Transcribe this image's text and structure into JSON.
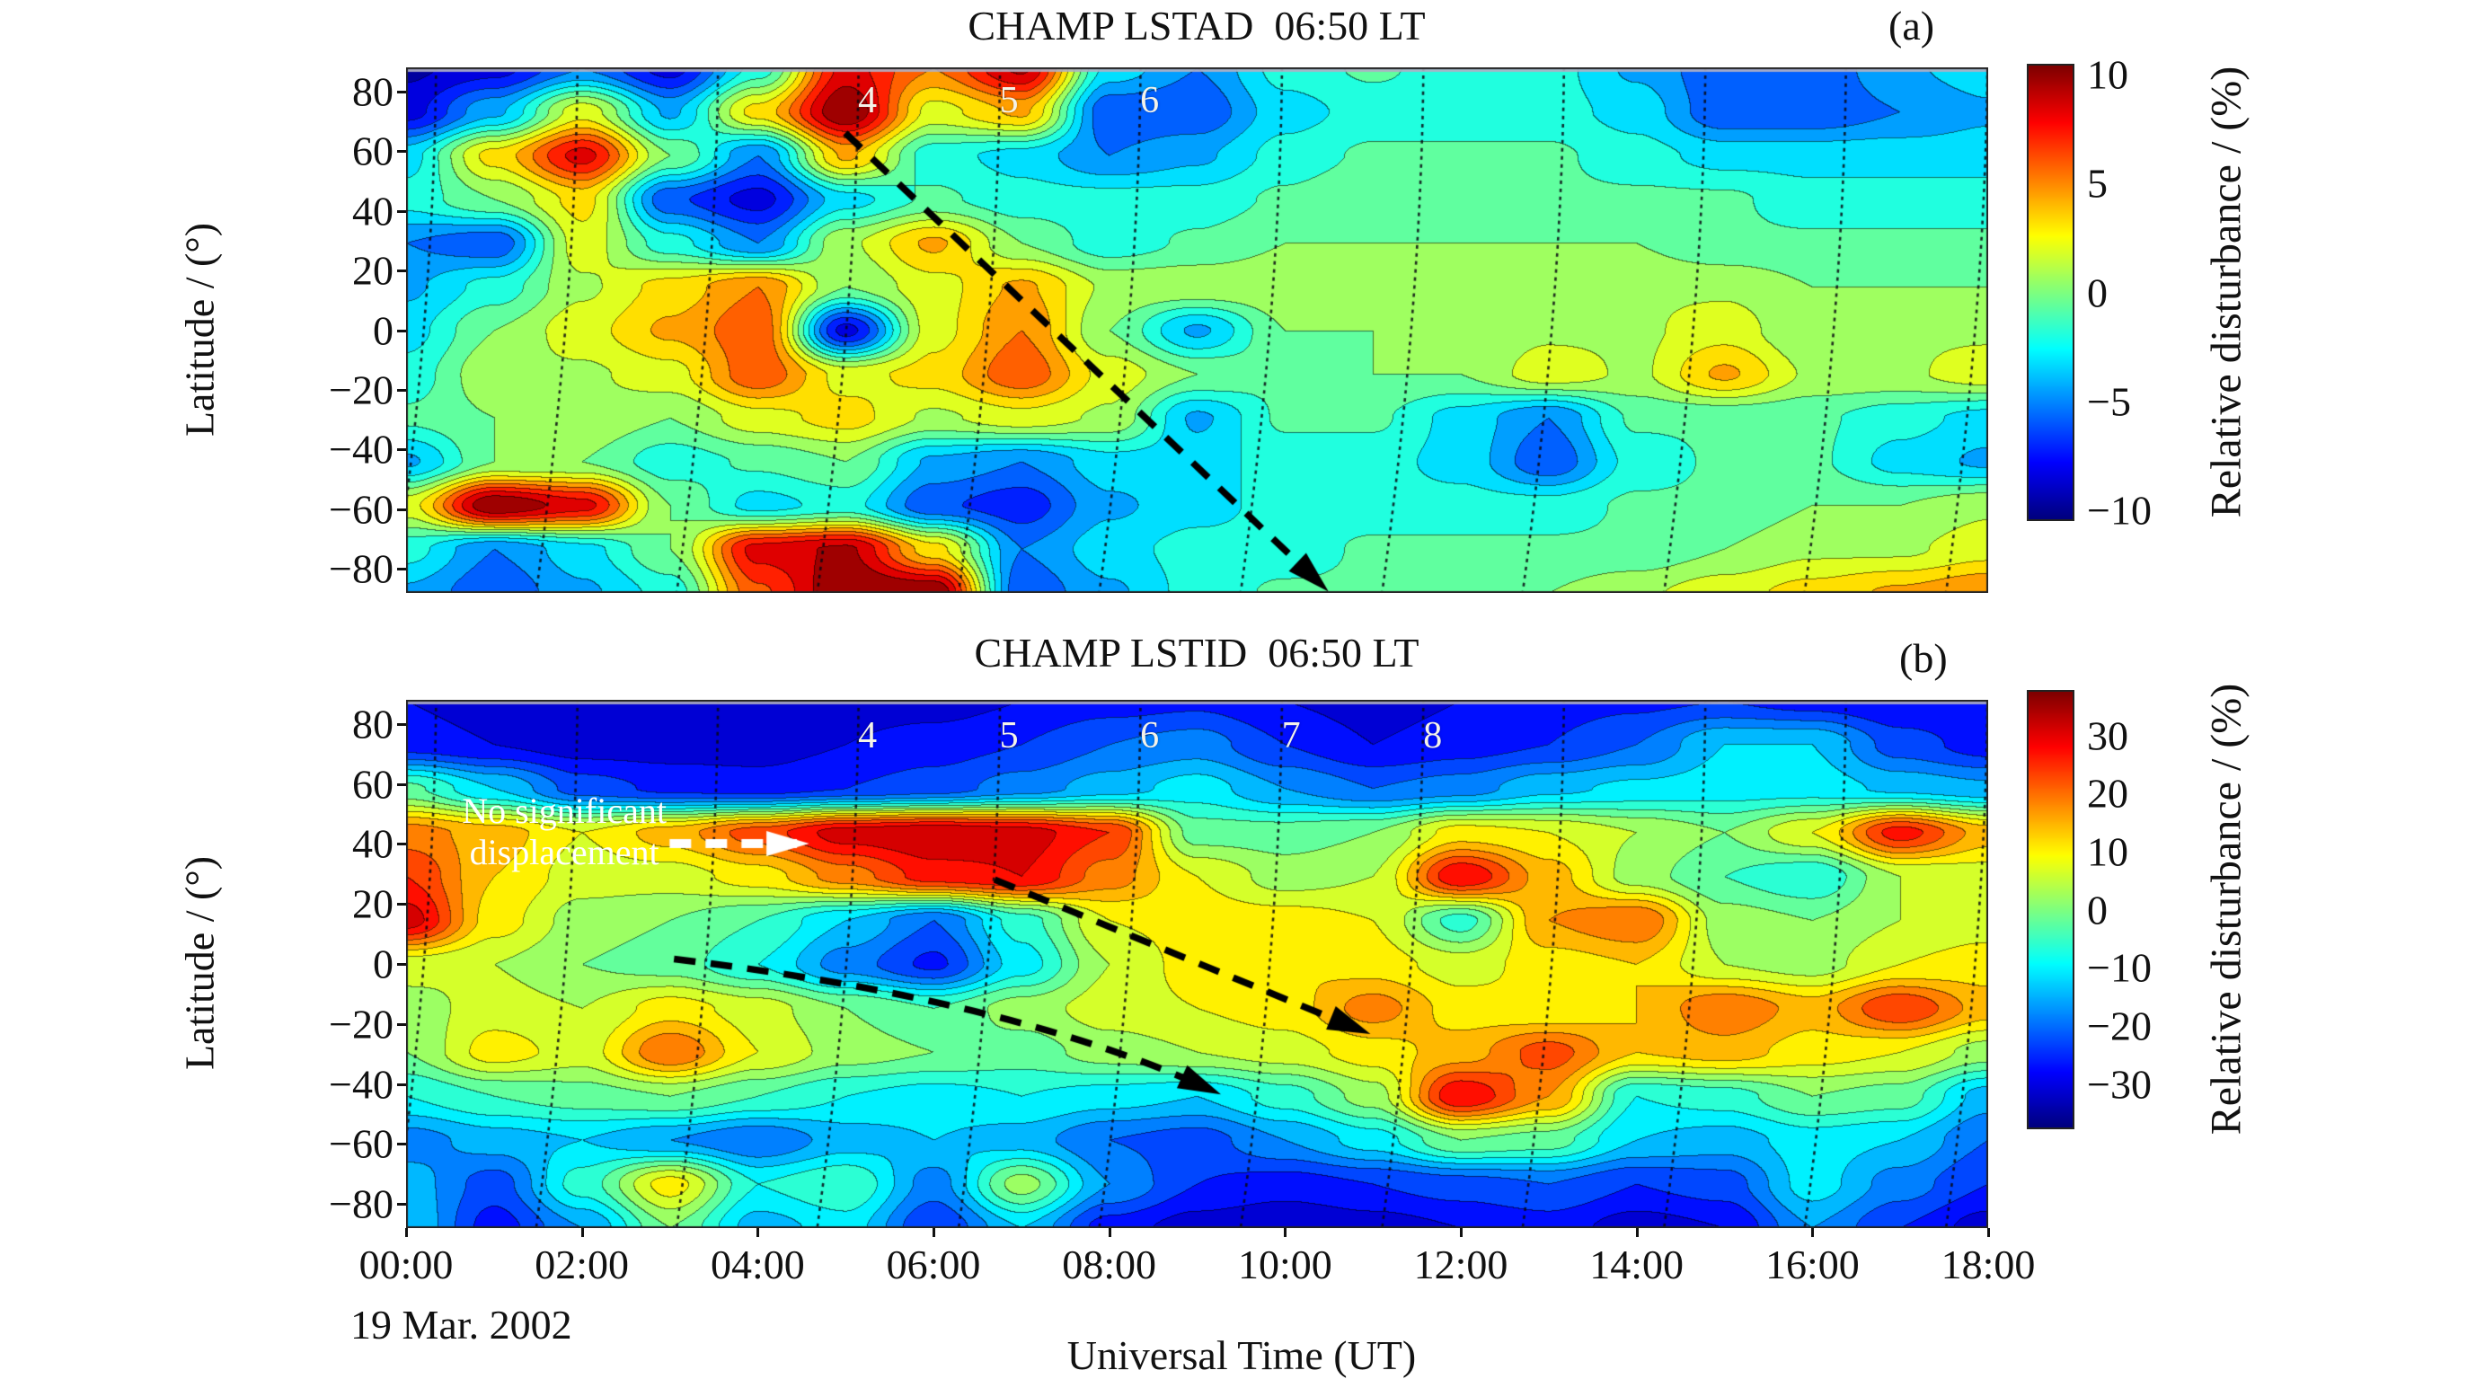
{
  "figure": {
    "xlabel": "Universal Time (UT)",
    "date_label": "19 Mar. 2002",
    "x_ticks": [
      "00:00",
      "02:00",
      "04:00",
      "06:00",
      "08:00",
      "10:00",
      "12:00",
      "14:00",
      "16:00",
      "18:00"
    ],
    "y_label": "Latitude / (°)",
    "colorbar_label": "Relative disturbance / (%)",
    "y_ticks": [
      {
        "label": "80",
        "v": 80
      },
      {
        "label": "60",
        "v": 60
      },
      {
        "label": "40",
        "v": 40
      },
      {
        "label": "20",
        "v": 20
      },
      {
        "label": "0",
        "v": 0
      },
      {
        "label": "−20",
        "v": -20
      },
      {
        "label": "−40",
        "v": -40
      },
      {
        "label": "−60",
        "v": -60
      },
      {
        "label": "−80",
        "v": -80
      }
    ],
    "panel_a": {
      "title": "CHAMP LSTAD  06:50 LT",
      "corner_label": "(a)"
    },
    "panel_b": {
      "title": "CHAMP LSTID  06:50 LT",
      "corner_label": "(b)"
    }
  },
  "chart_data": [
    {
      "type": "heatmap",
      "panel": "a",
      "title": "CHAMP LSTAD  06:50 LT",
      "xlabel": "Universal Time (UT)",
      "ylabel": "Latitude / (°)",
      "colormap": "jet",
      "x_hours": [
        0,
        1,
        2,
        3,
        4,
        5,
        6,
        7,
        8,
        9,
        10,
        11,
        12,
        13,
        14,
        15,
        16,
        17,
        18
      ],
      "lat_rows": [
        88,
        73.3,
        58.7,
        44,
        29.3,
        14.7,
        0,
        -14.7,
        -29.3,
        -44,
        -58.7,
        -73.3,
        -88
      ],
      "values": [
        [
          -9,
          -8,
          -5,
          -8,
          -2,
          8,
          5,
          9,
          -3,
          -5,
          -2,
          -1,
          -2,
          -2,
          -4,
          -6,
          -6,
          -4,
          -3
        ],
        [
          -8,
          -4,
          2,
          -4,
          3,
          10,
          2,
          4,
          -6,
          -6,
          -3,
          -2,
          -2,
          -2,
          -3,
          -6,
          -6,
          -5,
          -4
        ],
        [
          -3,
          3,
          8,
          0,
          -5,
          4,
          -2,
          -3,
          -5,
          -4,
          -2,
          -1,
          -1,
          -1,
          -2,
          -3,
          -3,
          -3,
          -3
        ],
        [
          -2,
          0,
          3,
          -6,
          -8,
          -3,
          -1,
          -2,
          -2,
          -2,
          -1,
          0,
          -1,
          -1,
          -1,
          -1,
          -2,
          -2,
          -2
        ],
        [
          -5,
          -6,
          2,
          -2,
          -5,
          1,
          4,
          0,
          -2,
          -1,
          0,
          0,
          0,
          0,
          0,
          -1,
          -1,
          -1,
          -1
        ],
        [
          -4,
          -2,
          1,
          3,
          5,
          0,
          2,
          4,
          1,
          1,
          1,
          1,
          0,
          1,
          1,
          1,
          0,
          0,
          0
        ],
        [
          -3,
          0,
          2,
          4,
          6,
          -8,
          2,
          5,
          0,
          -4,
          0,
          0,
          0,
          1,
          1,
          2,
          0,
          1,
          1
        ],
        [
          -2,
          1,
          1,
          2,
          6,
          2,
          3,
          6,
          2,
          0,
          -1,
          0,
          0,
          2,
          1,
          4,
          1,
          1,
          2
        ],
        [
          -1,
          0,
          1,
          0,
          2,
          3,
          1,
          2,
          1,
          -4,
          -1,
          -1,
          -3,
          -5,
          -1,
          -1,
          -1,
          -2,
          -3
        ],
        [
          -4,
          0,
          0,
          -2,
          -1,
          0,
          -4,
          -5,
          -3,
          -3,
          -2,
          -2,
          -3,
          -6,
          -2,
          -1,
          -1,
          -3,
          -4
        ],
        [
          2,
          10,
          8,
          0,
          -3,
          -2,
          -6,
          -7,
          -4,
          -3,
          -2,
          -2,
          -2,
          -2,
          -1,
          -1,
          0,
          0,
          1
        ],
        [
          -2,
          -5,
          -3,
          0,
          8,
          9,
          3,
          -5,
          -3,
          -2,
          -2,
          -1,
          -1,
          -1,
          -1,
          0,
          1,
          1,
          2
        ],
        [
          -4,
          -6,
          -4,
          -2,
          6,
          10,
          10,
          -6,
          -4,
          -2,
          -1,
          -1,
          -1,
          0,
          1,
          2,
          3,
          4,
          5
        ]
      ],
      "vmin": -10,
      "vmax": 10,
      "level_step": 1.25,
      "colorbar_ticks": [
        {
          "label": "10",
          "v": 10
        },
        {
          "label": "5",
          "v": 5
        },
        {
          "label": "0",
          "v": 0
        },
        {
          "label": "−5",
          "v": -5
        },
        {
          "label": "−10",
          "v": -10
        }
      ],
      "colorbar_label": "Relative disturbance / (%)",
      "track_times": [
        0.3,
        1.91,
        3.51,
        5.11,
        6.72,
        8.32,
        9.93,
        11.54,
        13.14,
        14.75,
        16.35,
        17.96
      ],
      "orbit_labels": [
        {
          "text": "4",
          "t": 5.25,
          "lat": 77
        },
        {
          "text": "5",
          "t": 6.86,
          "lat": 77
        },
        {
          "text": "6",
          "t": 8.46,
          "lat": 77
        }
      ],
      "arrows": [
        {
          "color": "black",
          "points": [
            [
              5.0,
              66
            ],
            [
              10.4,
              -85
            ]
          ]
        }
      ]
    },
    {
      "type": "heatmap",
      "panel": "b",
      "title": "CHAMP LSTID  06:50 LT",
      "xlabel": "Universal Time (UT)",
      "ylabel": "Latitude / (°)",
      "colormap": "jet",
      "x_hours": [
        0,
        1,
        2,
        3,
        4,
        5,
        6,
        7,
        8,
        9,
        10,
        11,
        12,
        13,
        14,
        15,
        16,
        17,
        18
      ],
      "lat_rows": [
        88,
        73.3,
        58.7,
        44,
        29.3,
        14.7,
        0,
        -14.7,
        -29.3,
        -44,
        -58.7,
        -73.3,
        -88
      ],
      "values": [
        [
          -28,
          -30,
          -30,
          -32,
          -32,
          -30,
          -30,
          -28,
          -26,
          -25,
          -28,
          -30,
          -28,
          -26,
          -25,
          -24,
          -26,
          -28,
          -28
        ],
        [
          -26,
          -28,
          -30,
          -30,
          -30,
          -28,
          -26,
          -24,
          -20,
          -18,
          -24,
          -28,
          -26,
          -24,
          -20,
          -12,
          -12,
          -22,
          -26
        ],
        [
          -3,
          -12,
          -22,
          -25,
          -26,
          -24,
          -22,
          -18,
          -14,
          -10,
          -16,
          -20,
          -18,
          -13,
          -11,
          -10,
          -10,
          -13,
          -15
        ],
        [
          18,
          14,
          8,
          14,
          22,
          30,
          32,
          30,
          24,
          -2,
          -2,
          0,
          10,
          8,
          4,
          0,
          8,
          26,
          14
        ],
        [
          24,
          12,
          6,
          6,
          10,
          18,
          26,
          28,
          18,
          8,
          2,
          4,
          28,
          14,
          2,
          -4,
          -8,
          4,
          6
        ],
        [
          30,
          10,
          2,
          0,
          -4,
          -12,
          -20,
          -6,
          8,
          10,
          10,
          8,
          -6,
          16,
          20,
          2,
          0,
          4,
          6
        ],
        [
          6,
          4,
          0,
          -2,
          -8,
          -18,
          -25,
          -10,
          4,
          10,
          12,
          10,
          6,
          10,
          12,
          4,
          2,
          8,
          10
        ],
        [
          2,
          6,
          4,
          10,
          6,
          0,
          -4,
          2,
          6,
          8,
          10,
          18,
          10,
          8,
          12,
          20,
          14,
          24,
          14
        ],
        [
          0,
          10,
          6,
          20,
          8,
          2,
          0,
          -2,
          2,
          4,
          6,
          10,
          14,
          22,
          12,
          14,
          10,
          8,
          2
        ],
        [
          -8,
          -4,
          -2,
          0,
          -4,
          -8,
          -10,
          -8,
          -10,
          -12,
          -6,
          2,
          28,
          16,
          -8,
          -6,
          0,
          -2,
          -14
        ],
        [
          -18,
          -14,
          -12,
          -16,
          -20,
          -14,
          -12,
          -14,
          -20,
          -22,
          -16,
          -10,
          0,
          -2,
          -12,
          -14,
          -10,
          -12,
          -20
        ],
        [
          -14,
          -22,
          -6,
          10,
          -8,
          -4,
          -18,
          2,
          -16,
          -24,
          -26,
          -24,
          -22,
          -20,
          -24,
          -22,
          -10,
          -18,
          -24
        ],
        [
          -12,
          -26,
          -16,
          0,
          -14,
          -10,
          -24,
          -12,
          -26,
          -30,
          -32,
          -30,
          -28,
          -26,
          -30,
          -28,
          -16,
          -24,
          -30
        ]
      ],
      "vmin": -36,
      "vmax": 36,
      "level_step": 4,
      "colorbar_ticks": [
        {
          "label": "30",
          "v": 30
        },
        {
          "label": "20",
          "v": 20
        },
        {
          "label": "10",
          "v": 10
        },
        {
          "label": "0",
          "v": 0
        },
        {
          "label": "−10",
          "v": -10
        },
        {
          "label": "−20",
          "v": -20
        },
        {
          "label": "−30",
          "v": -30
        }
      ],
      "colorbar_label": "Relative disturbance / (%)",
      "track_times": [
        0.3,
        1.91,
        3.51,
        5.11,
        6.72,
        8.32,
        9.93,
        11.54,
        13.14,
        14.75,
        16.35,
        17.96
      ],
      "orbit_labels": [
        {
          "text": "4",
          "t": 5.25,
          "lat": 76
        },
        {
          "text": "5",
          "t": 6.86,
          "lat": 76
        },
        {
          "text": "6",
          "t": 8.46,
          "lat": 76
        },
        {
          "text": "7",
          "t": 10.07,
          "lat": 76
        },
        {
          "text": "8",
          "t": 11.68,
          "lat": 76
        }
      ],
      "arrows": [
        {
          "color": "black",
          "points": [
            [
              3.05,
              1.5
            ],
            [
              6.9,
              -12
            ],
            [
              9.15,
              -42
            ]
          ]
        },
        {
          "color": "black",
          "points": [
            [
              6.7,
              28
            ],
            [
              10.85,
              -22
            ]
          ]
        },
        {
          "color": "white",
          "points": [
            [
              3.0,
              40
            ],
            [
              4.45,
              40
            ]
          ]
        }
      ],
      "note": {
        "line1": "No significant",
        "line2": "displacement",
        "t": 1.8,
        "lat": 44
      }
    }
  ]
}
